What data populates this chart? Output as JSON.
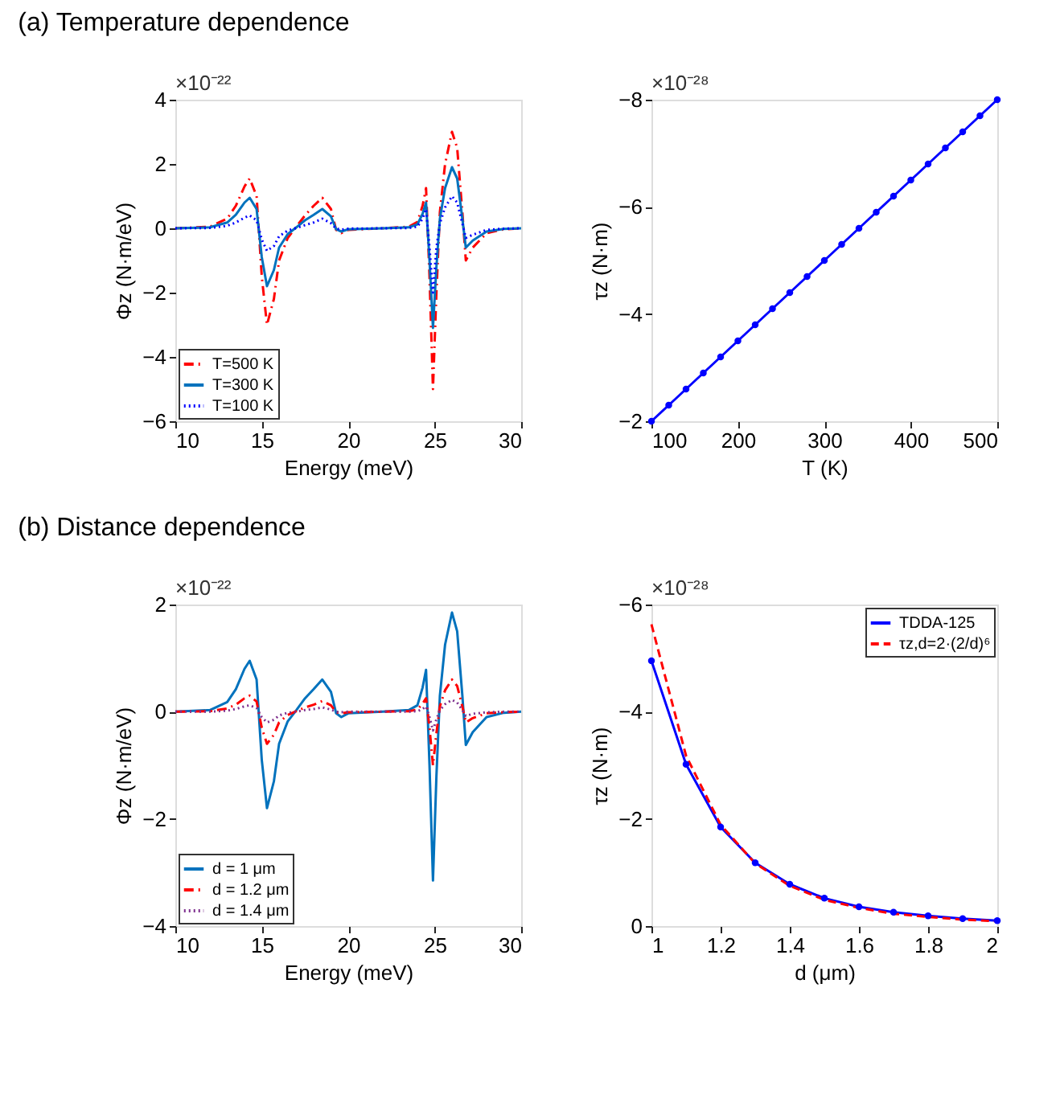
{
  "chart_data": [
    {
      "type": "line",
      "title": "(a)   Temperature dependence",
      "xlabel": "Energy (meV)",
      "ylabel": "Φz (N·m/eV)",
      "annotations": [
        "×10⁻²²"
      ],
      "xlim": [
        10,
        30
      ],
      "xticks": [
        10,
        15,
        20,
        25,
        30
      ],
      "ylim": [
        -6,
        4
      ],
      "yticks": [
        -6,
        -4,
        -2,
        0,
        2,
        4
      ],
      "grid": false,
      "legend": "bottom left",
      "x": [
        10,
        12,
        13,
        13.5,
        14,
        14.3,
        14.7,
        15,
        15.3,
        15.7,
        16,
        16.5,
        17,
        17.5,
        18,
        18.5,
        19,
        19.3,
        19.6,
        20,
        22,
        23.5,
        24,
        24.3,
        24.5,
        24.7,
        24.9,
        25.1,
        25.3,
        25.6,
        26,
        26.3,
        26.6,
        26.8,
        27.2,
        28,
        29,
        30
      ],
      "series": [
        {
          "name": "T=500 K",
          "color": "#ff0000",
          "line_style": "dashdot",
          "values": [
            0,
            0.05,
            0.3,
            0.7,
            1.3,
            1.55,
            1.0,
            -1.5,
            -3.0,
            -2.2,
            -1.0,
            -0.3,
            0.05,
            0.4,
            0.7,
            0.95,
            0.6,
            -0.05,
            -0.15,
            -0.05,
            0,
            0.05,
            0.2,
            0.7,
            1.25,
            -1.5,
            -5.0,
            -2.0,
            0.5,
            2.0,
            3.0,
            2.5,
            0.5,
            -1.0,
            -0.6,
            -0.15,
            -0.03,
            0
          ]
        },
        {
          "name": "T=300 K",
          "color": "#0072bd",
          "line_style": "solid",
          "values": [
            0,
            0.03,
            0.18,
            0.42,
            0.8,
            0.95,
            0.6,
            -0.9,
            -1.8,
            -1.3,
            -0.6,
            -0.18,
            0.03,
            0.25,
            0.42,
            0.6,
            0.37,
            -0.03,
            -0.1,
            -0.03,
            0,
            0.03,
            0.12,
            0.45,
            0.8,
            -1.0,
            -3.1,
            -1.2,
            0.3,
            1.25,
            1.9,
            1.55,
            0.3,
            -0.6,
            -0.38,
            -0.1,
            -0.02,
            0
          ]
        },
        {
          "name": "T=100 K",
          "color": "#0000ff",
          "line_style": "dotted",
          "values": [
            0,
            0.01,
            0.08,
            0.18,
            0.33,
            0.4,
            0.25,
            -0.35,
            -0.7,
            -0.55,
            -0.25,
            -0.07,
            0.01,
            0.1,
            0.18,
            0.3,
            0.16,
            -0.01,
            -0.04,
            -0.01,
            0,
            0.01,
            0.05,
            0.3,
            0.6,
            -0.6,
            -2.0,
            -0.6,
            0.15,
            0.65,
            1.0,
            0.8,
            0.15,
            -0.3,
            -0.2,
            -0.05,
            -0.01,
            0
          ]
        }
      ]
    },
    {
      "type": "line",
      "xlabel": "T (K)",
      "ylabel": "τz (N·m)",
      "annotations": [
        "×10⁻²⁸"
      ],
      "xlim": [
        100,
        500
      ],
      "xticks": [
        100,
        200,
        300,
        400,
        500
      ],
      "ylim": [
        -2,
        -8
      ],
      "yticks": [
        -8,
        -6,
        -4,
        -2
      ],
      "grid": false,
      "x": [
        100,
        120,
        140,
        160,
        180,
        200,
        220,
        240,
        260,
        280,
        300,
        320,
        340,
        360,
        380,
        400,
        420,
        440,
        460,
        480,
        500
      ],
      "series": [
        {
          "color": "#0000ff",
          "line_style": "solid",
          "marker": "circle",
          "values": [
            -2,
            -2.3,
            -2.6,
            -2.9,
            -3.2,
            -3.5,
            -3.8,
            -4.1,
            -4.4,
            -4.7,
            -5,
            -5.3,
            -5.6,
            -5.9,
            -6.2,
            -6.5,
            -6.8,
            -7.1,
            -7.4,
            -7.7,
            -8
          ]
        }
      ]
    },
    {
      "type": "line",
      "title": "(b)   Distance dependence",
      "xlabel": "Energy (meV)",
      "ylabel": "Φz (N·m/eV)",
      "annotations": [
        "×10⁻²²"
      ],
      "xlim": [
        10,
        30
      ],
      "xticks": [
        10,
        15,
        20,
        25,
        30
      ],
      "ylim": [
        -4,
        2
      ],
      "yticks": [
        -4,
        -2,
        0,
        2
      ],
      "grid": false,
      "legend": "bottom left",
      "x": [
        10,
        12,
        13,
        13.5,
        14,
        14.3,
        14.7,
        15,
        15.3,
        15.7,
        16,
        16.5,
        17,
        17.5,
        18,
        18.5,
        19,
        19.3,
        19.6,
        20,
        22,
        23.5,
        24,
        24.3,
        24.5,
        24.7,
        24.9,
        25.1,
        25.3,
        25.6,
        26,
        26.3,
        26.6,
        26.8,
        27.2,
        28,
        29,
        30
      ],
      "series": [
        {
          "name": "d = 1 μm",
          "color": "#0072bd",
          "line_style": "solid",
          "values": [
            0,
            0.03,
            0.18,
            0.42,
            0.8,
            0.95,
            0.6,
            -0.9,
            -1.8,
            -1.3,
            -0.6,
            -0.18,
            0.03,
            0.25,
            0.42,
            0.6,
            0.37,
            -0.03,
            -0.1,
            -0.03,
            0,
            0.03,
            0.12,
            0.45,
            0.78,
            -1.0,
            -3.15,
            -1.2,
            0.3,
            1.25,
            1.85,
            1.5,
            0.3,
            -0.62,
            -0.38,
            -0.1,
            -0.02,
            0
          ]
        },
        {
          "name": "d = 1.2 μm",
          "color": "#ff0000",
          "line_style": "dashdot",
          "values": [
            0,
            0.01,
            0.06,
            0.13,
            0.25,
            0.3,
            0.19,
            -0.3,
            -0.6,
            -0.43,
            -0.2,
            -0.06,
            0.01,
            0.08,
            0.13,
            0.2,
            0.12,
            -0.01,
            -0.03,
            -0.01,
            0,
            0.01,
            0.04,
            0.15,
            0.25,
            -0.3,
            -1.0,
            -0.4,
            0.1,
            0.4,
            0.6,
            0.48,
            0.1,
            -0.2,
            -0.12,
            -0.03,
            -0.01,
            0
          ]
        },
        {
          "name": "d = 1.4 μm",
          "color": "#7e2f8e",
          "line_style": "dotted",
          "values": [
            0,
            0,
            0.02,
            0.05,
            0.1,
            0.12,
            0.07,
            -0.1,
            -0.2,
            -0.15,
            -0.07,
            -0.02,
            0,
            0.03,
            0.05,
            0.08,
            0.04,
            0,
            -0.01,
            0,
            0,
            0,
            0.01,
            0.05,
            0.1,
            -0.1,
            -0.35,
            -0.14,
            0.03,
            0.14,
            0.22,
            0.17,
            0.03,
            -0.08,
            -0.04,
            -0.01,
            0,
            0
          ]
        }
      ]
    },
    {
      "type": "line",
      "xlabel": "d (μm)",
      "ylabel": "τz (N·m)",
      "annotations": [
        "×10⁻²⁸"
      ],
      "xlim": [
        1,
        2
      ],
      "xticks": [
        1,
        1.2,
        1.4,
        1.6,
        1.8,
        2
      ],
      "ylim": [
        0,
        -6
      ],
      "yticks": [
        -6,
        -4,
        -2,
        0
      ],
      "grid": false,
      "legend": "top right",
      "x": [
        1,
        1.1,
        1.2,
        1.3,
        1.4,
        1.5,
        1.6,
        1.7,
        1.8,
        1.9,
        2
      ],
      "series": [
        {
          "name": "TDDA-125",
          "color": "#0000ff",
          "line_style": "solid",
          "marker": "circle",
          "values": [
            -4.95,
            -3.02,
            -1.85,
            -1.18,
            -0.78,
            -0.52,
            -0.36,
            -0.26,
            -0.19,
            -0.14,
            -0.1
          ]
        },
        {
          "name": "τz,d=2·(2/d)⁶",
          "color": "#ff0000",
          "line_style": "dashed",
          "values": [
            -5.63,
            -3.18,
            -1.89,
            -1.17,
            -0.75,
            -0.49,
            -0.34,
            -0.23,
            -0.17,
            -0.12,
            -0.09
          ]
        }
      ]
    }
  ]
}
